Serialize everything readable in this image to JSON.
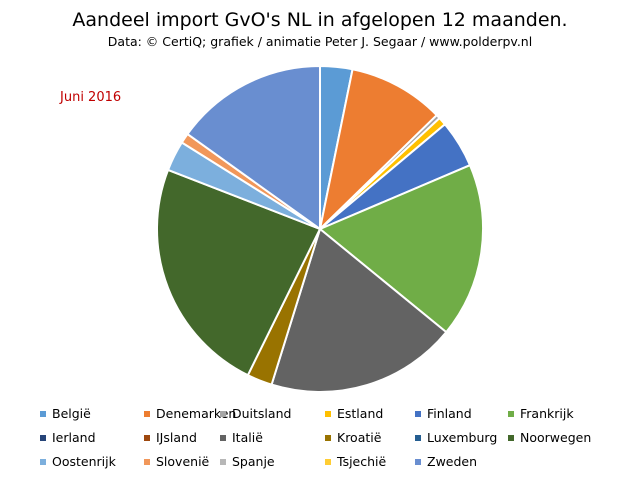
{
  "chart_data": {
    "type": "pie",
    "title": "Aandeel import GvO's NL in afgelopen 12 maanden.",
    "subtitle": "Data: © CertiQ; grafiek / animatie  Peter J. Segaar / www.polderpv.nl",
    "period_label": "Juni 2016",
    "legend_position": "bottom",
    "categories": [
      "België",
      "Denemarken",
      "Duitsland",
      "Estland",
      "Finland",
      "Frankrijk",
      "Ierland",
      "IJsland",
      "Italië",
      "Kroatië",
      "Luxemburg",
      "Noorwegen",
      "Oostenrijk",
      "Slovenië",
      "Spanje",
      "Tsjechië",
      "Zweden"
    ],
    "values": [
      3.2,
      9.5,
      0.4,
      0.8,
      4.7,
      17.3,
      0.0,
      0.0,
      18.9,
      2.5,
      0.0,
      23.6,
      3.0,
      1.0,
      0.0,
      0.0,
      15.1
    ],
    "colors": [
      "#5b9bd5",
      "#ed7d31",
      "#a5a5a5",
      "#ffc000",
      "#4472c4",
      "#70ad47",
      "#264478",
      "#9e480e",
      "#636363",
      "#997300",
      "#255e91",
      "#43682b",
      "#7cafdd",
      "#f1975a",
      "#b7b7b7",
      "#ffcd33",
      "#698ed0"
    ]
  }
}
